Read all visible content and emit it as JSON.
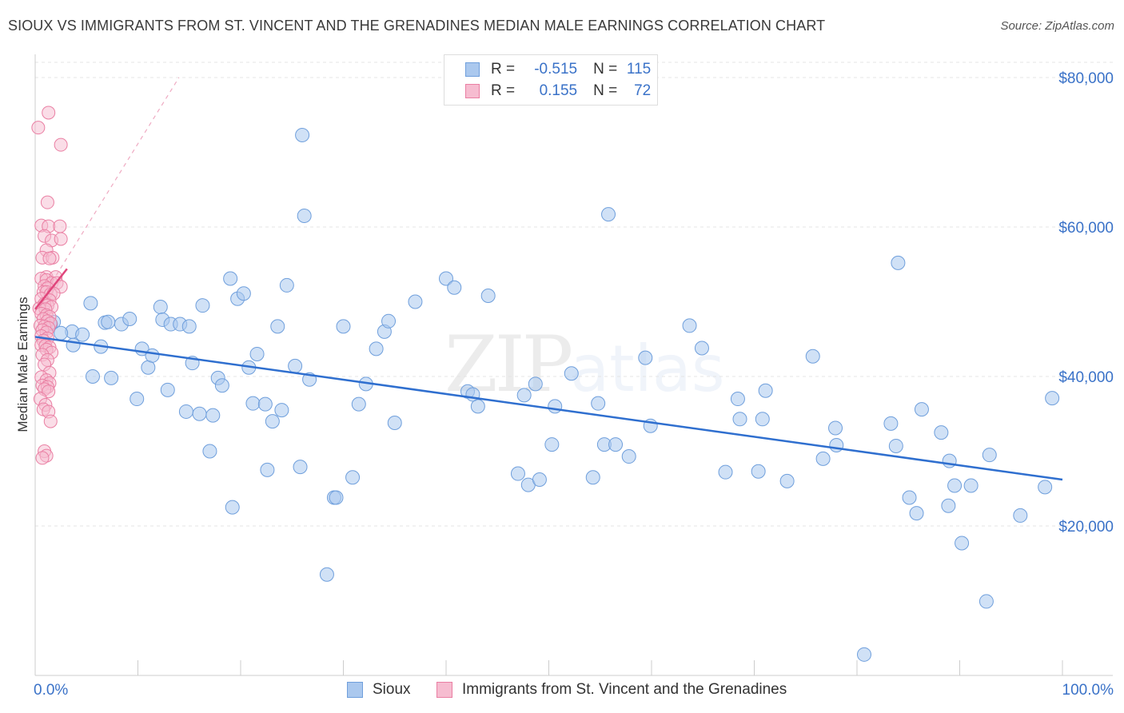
{
  "title": "SIOUX VS IMMIGRANTS FROM ST. VINCENT AND THE GRENADINES MEDIAN MALE EARNINGS CORRELATION CHART",
  "source": "Source: ZipAtlas.com",
  "watermark": {
    "zip": "ZIP",
    "atlas": "atlas"
  },
  "colors": {
    "blue_fill": "#aac8ee",
    "blue_stroke": "#6f9fdc",
    "blue_line": "#2f6fcf",
    "pink_fill": "#f6bcd0",
    "pink_stroke": "#ea7fa3",
    "pink_line": "#e0457b",
    "axis_text": "#3a72c8"
  },
  "legend": {
    "series1": {
      "r_label": "R =",
      "r_value": "-0.515",
      "n_label": "N =",
      "n_value": "115"
    },
    "series2": {
      "r_label": "R =",
      "r_value": "0.155",
      "n_label": "N =",
      "n_value": "72"
    }
  },
  "bottom_legend": {
    "series1": "Sioux",
    "series2": "Immigrants from St. Vincent and the Grenadines"
  },
  "chart_data": {
    "type": "scatter",
    "title": "SIOUX VS IMMIGRANTS FROM ST. VINCENT AND THE GRENADINES MEDIAN MALE EARNINGS CORRELATION CHART",
    "xlabel": "",
    "ylabel": "Median Male Earnings",
    "xlim": [
      0,
      100
    ],
    "ylim": [
      0,
      82000
    ],
    "x_tick_labels": [
      "0.0%",
      "100.0%"
    ],
    "y_ticks": [
      20000,
      40000,
      60000,
      80000
    ],
    "y_tick_labels": [
      "$20,000",
      "$40,000",
      "$60,000",
      "$80,000"
    ],
    "grid": true,
    "series": [
      {
        "name": "Sioux",
        "r": -0.515,
        "n": 115,
        "trend": {
          "x": [
            0,
            100
          ],
          "y": [
            45300,
            26200
          ]
        },
        "points": [
          [
            1.8,
            47300
          ],
          [
            3.6,
            46000
          ],
          [
            3.7,
            44200
          ],
          [
            4.6,
            45600
          ],
          [
            5.4,
            49800
          ],
          [
            6.8,
            47200
          ],
          [
            7.1,
            47300
          ],
          [
            6.4,
            44000
          ],
          [
            7.4,
            39800
          ],
          [
            8.4,
            47000
          ],
          [
            9.2,
            47700
          ],
          [
            9.9,
            37000
          ],
          [
            10.4,
            43700
          ],
          [
            11.0,
            41200
          ],
          [
            11.4,
            42800
          ],
          [
            12.2,
            49300
          ],
          [
            12.4,
            47600
          ],
          [
            12.9,
            38200
          ],
          [
            13.2,
            47000
          ],
          [
            14.1,
            47000
          ],
          [
            14.7,
            35300
          ],
          [
            15.0,
            46700
          ],
          [
            15.3,
            41800
          ],
          [
            16.0,
            35000
          ],
          [
            16.3,
            49500
          ],
          [
            17.0,
            30000
          ],
          [
            17.3,
            34800
          ],
          [
            17.8,
            39800
          ],
          [
            18.2,
            38800
          ],
          [
            19.0,
            53100
          ],
          [
            19.2,
            22500
          ],
          [
            19.7,
            50400
          ],
          [
            20.3,
            51100
          ],
          [
            20.8,
            41200
          ],
          [
            21.2,
            36400
          ],
          [
            21.6,
            43000
          ],
          [
            22.4,
            36300
          ],
          [
            22.6,
            27500
          ],
          [
            23.1,
            34000
          ],
          [
            23.6,
            46700
          ],
          [
            24.0,
            35500
          ],
          [
            24.5,
            52200
          ],
          [
            25.3,
            41400
          ],
          [
            25.8,
            27900
          ],
          [
            26.0,
            72300
          ],
          [
            26.2,
            61500
          ],
          [
            26.7,
            39600
          ],
          [
            28.4,
            13500
          ],
          [
            29.1,
            23800
          ],
          [
            29.3,
            23800
          ],
          [
            30.0,
            46700
          ],
          [
            30.9,
            26500
          ],
          [
            31.5,
            36300
          ],
          [
            32.2,
            39000
          ],
          [
            33.2,
            43700
          ],
          [
            34.0,
            46000
          ],
          [
            34.4,
            47400
          ],
          [
            35.0,
            33800
          ],
          [
            37.0,
            50000
          ],
          [
            40.0,
            53100
          ],
          [
            40.8,
            51900
          ],
          [
            42.1,
            38000
          ],
          [
            42.6,
            37600
          ],
          [
            43.1,
            36000
          ],
          [
            44.1,
            50800
          ],
          [
            47.0,
            27000
          ],
          [
            47.6,
            37500
          ],
          [
            48.0,
            25500
          ],
          [
            48.7,
            39000
          ],
          [
            49.1,
            26200
          ],
          [
            50.3,
            30900
          ],
          [
            50.6,
            36000
          ],
          [
            52.2,
            40400
          ],
          [
            54.3,
            26500
          ],
          [
            54.8,
            36400
          ],
          [
            55.4,
            30900
          ],
          [
            55.8,
            61700
          ],
          [
            56.5,
            30900
          ],
          [
            57.8,
            29300
          ],
          [
            59.9,
            33400
          ],
          [
            59.4,
            42500
          ],
          [
            63.7,
            46800
          ],
          [
            64.9,
            43800
          ],
          [
            67.2,
            27200
          ],
          [
            68.4,
            37000
          ],
          [
            68.6,
            34300
          ],
          [
            70.8,
            34300
          ],
          [
            70.4,
            27300
          ],
          [
            71.1,
            38100
          ],
          [
            73.2,
            26000
          ],
          [
            75.7,
            42700
          ],
          [
            76.7,
            29000
          ],
          [
            77.9,
            33100
          ],
          [
            78.0,
            30800
          ],
          [
            80.7,
            2800
          ],
          [
            83.3,
            33700
          ],
          [
            83.8,
            30700
          ],
          [
            84.0,
            55200
          ],
          [
            85.1,
            23800
          ],
          [
            85.8,
            21700
          ],
          [
            86.3,
            35600
          ],
          [
            88.2,
            32500
          ],
          [
            88.9,
            22700
          ],
          [
            89.0,
            28700
          ],
          [
            89.5,
            25400
          ],
          [
            90.2,
            17700
          ],
          [
            91.1,
            25400
          ],
          [
            92.6,
            9900
          ],
          [
            92.9,
            29500
          ],
          [
            95.9,
            21400
          ],
          [
            98.3,
            25200
          ],
          [
            99.0,
            37100
          ],
          [
            1.5,
            47000
          ],
          [
            2.5,
            45800
          ],
          [
            5.6,
            40000
          ]
        ]
      },
      {
        "name": "Immigrants from St. Vincent and the Grenadines",
        "r": 0.155,
        "n": 72,
        "trend_solid": {
          "x": [
            0,
            3.1
          ],
          "y": [
            49000,
            54400
          ]
        },
        "trend_dashed": {
          "x": [
            0,
            14
          ],
          "y": [
            49000,
            80000
          ]
        },
        "points": [
          [
            0.3,
            73300
          ],
          [
            1.3,
            75300
          ],
          [
            2.5,
            71000
          ],
          [
            1.2,
            63300
          ],
          [
            0.6,
            60200
          ],
          [
            1.3,
            60100
          ],
          [
            2.4,
            60100
          ],
          [
            0.9,
            58800
          ],
          [
            1.6,
            58200
          ],
          [
            2.5,
            58400
          ],
          [
            1.1,
            56900
          ],
          [
            0.7,
            55900
          ],
          [
            1.7,
            55900
          ],
          [
            1.4,
            55800
          ],
          [
            1.1,
            53300
          ],
          [
            0.6,
            53100
          ],
          [
            2.0,
            53300
          ],
          [
            1.1,
            52900
          ],
          [
            1.6,
            52500
          ],
          [
            2.1,
            52500
          ],
          [
            0.9,
            52100
          ],
          [
            1.2,
            51800
          ],
          [
            2.5,
            52000
          ],
          [
            0.8,
            51300
          ],
          [
            1.1,
            51300
          ],
          [
            1.5,
            51000
          ],
          [
            1.8,
            51100
          ],
          [
            0.6,
            50400
          ],
          [
            1.4,
            50200
          ],
          [
            0.9,
            49700
          ],
          [
            1.2,
            49500
          ],
          [
            1.6,
            49300
          ],
          [
            0.4,
            49100
          ],
          [
            1.0,
            49000
          ],
          [
            0.6,
            48400
          ],
          [
            1.1,
            48200
          ],
          [
            1.4,
            48000
          ],
          [
            0.8,
            47700
          ],
          [
            1.2,
            47400
          ],
          [
            1.5,
            47100
          ],
          [
            0.5,
            46800
          ],
          [
            0.9,
            46700
          ],
          [
            1.3,
            46500
          ],
          [
            0.7,
            46200
          ],
          [
            1.1,
            45900
          ],
          [
            0.6,
            45400
          ],
          [
            1.2,
            45100
          ],
          [
            0.8,
            44800
          ],
          [
            0.6,
            44200
          ],
          [
            1.0,
            44100
          ],
          [
            1.4,
            43900
          ],
          [
            1.1,
            43600
          ],
          [
            1.6,
            43200
          ],
          [
            0.7,
            42900
          ],
          [
            1.2,
            42200
          ],
          [
            0.9,
            41600
          ],
          [
            1.4,
            40500
          ],
          [
            0.6,
            39900
          ],
          [
            1.1,
            39500
          ],
          [
            1.4,
            39100
          ],
          [
            0.7,
            38800
          ],
          [
            1.2,
            38600
          ],
          [
            0.9,
            38300
          ],
          [
            1.3,
            38000
          ],
          [
            0.5,
            37000
          ],
          [
            1.0,
            36200
          ],
          [
            0.8,
            35600
          ],
          [
            1.3,
            35300
          ],
          [
            1.5,
            34000
          ],
          [
            0.9,
            30000
          ],
          [
            1.1,
            29400
          ],
          [
            0.7,
            29100
          ]
        ]
      }
    ]
  }
}
